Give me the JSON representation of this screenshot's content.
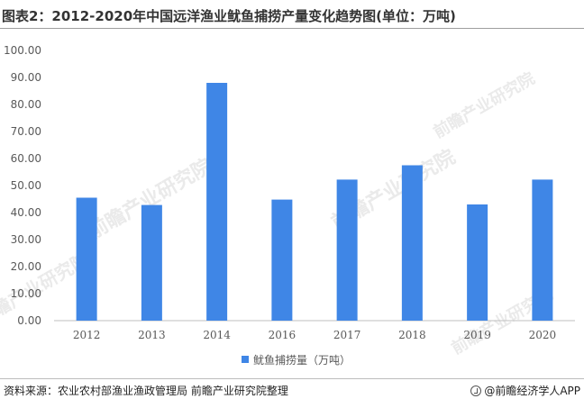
{
  "title": "图表2：2012-2020年中国远洋渔业鱿鱼捕捞产量变化趋势图(单位：万吨)",
  "source": "资料来源：农业农村部渔业渔政管理局 前瞻产业研究院整理",
  "brand": "@前瞻经济学人APP",
  "watermark": "前瞻产业研究院",
  "colors": {
    "bar": "#3f86e6",
    "axis": "#bfbfbf",
    "text": "#595959"
  },
  "chart_data": {
    "type": "bar",
    "categories": [
      "2012",
      "2013",
      "2014",
      "2016",
      "2017",
      "2018",
      "2019",
      "2020"
    ],
    "series": [
      {
        "name": "鱿鱼捕捞量（万吨）",
        "values": [
          45.5,
          42.8,
          88.0,
          44.8,
          52.2,
          57.5,
          43.0,
          52.2
        ]
      }
    ],
    "yticks": [
      "0.00",
      "10.00",
      "20.00",
      "30.00",
      "40.00",
      "50.00",
      "60.00",
      "70.00",
      "80.00",
      "90.00",
      "100.00"
    ],
    "ylim": [
      0,
      100
    ],
    "grid": false,
    "legend_position": "bottom"
  }
}
